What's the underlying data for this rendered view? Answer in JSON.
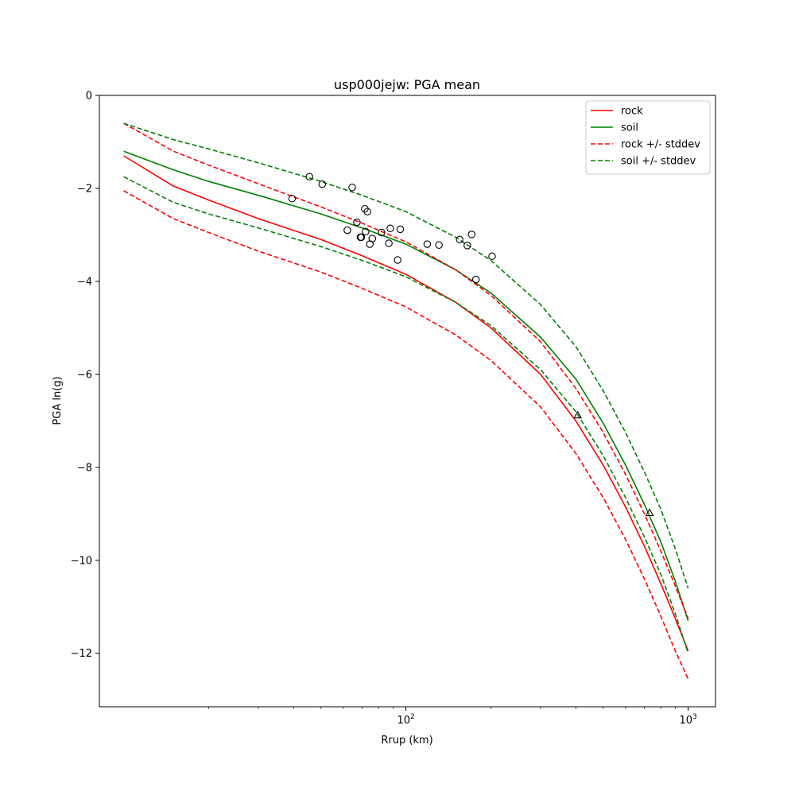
{
  "chart_data": {
    "type": "line",
    "title": "usp000jejw: PGA mean",
    "xlabel": "Rrup (km)",
    "ylabel": "PGA ln(g)",
    "xscale": "log",
    "xlim": [
      8.2,
      1250
    ],
    "ylim": [
      -13.15,
      0
    ],
    "x_ticks": [
      {
        "value": 100,
        "base": "10",
        "exp": "2"
      },
      {
        "value": 1000,
        "base": "10",
        "exp": "3"
      }
    ],
    "y_ticks": [
      {
        "value": 0,
        "label": "0"
      },
      {
        "value": -2,
        "label": "−2"
      },
      {
        "value": -4,
        "label": "−4"
      },
      {
        "value": -6,
        "label": "−6"
      },
      {
        "value": -8,
        "label": "−8"
      },
      {
        "value": -10,
        "label": "−10"
      },
      {
        "value": -12,
        "label": "−12"
      }
    ],
    "grid": false,
    "legend_position": "top-right",
    "x": [
      10,
      15,
      20,
      30,
      50,
      70,
      100,
      150,
      200,
      300,
      400,
      500,
      600,
      700,
      800,
      900,
      1000
    ],
    "series": [
      {
        "name": "rock",
        "color": "#ff0000",
        "dash": false,
        "values": [
          -1.3,
          -1.95,
          -2.25,
          -2.65,
          -3.1,
          -3.45,
          -3.85,
          -4.45,
          -5.0,
          -6.0,
          -7.0,
          -7.95,
          -8.85,
          -9.7,
          -10.5,
          -11.25,
          -11.95
        ]
      },
      {
        "name": "soil",
        "color": "#008000",
        "dash": false,
        "values": [
          -1.2,
          -1.6,
          -1.85,
          -2.15,
          -2.55,
          -2.85,
          -3.2,
          -3.75,
          -4.25,
          -5.2,
          -6.1,
          -7.05,
          -7.95,
          -8.8,
          -9.6,
          -10.45,
          -11.3
        ]
      },
      {
        "name": "rock +/- stddev",
        "color": "#ff0000",
        "dash": true,
        "values": [
          -0.6,
          -1.2,
          -1.5,
          -1.9,
          -2.4,
          -2.75,
          -3.15,
          -3.75,
          -4.3,
          -5.3,
          -6.3,
          -7.25,
          -8.15,
          -9.0,
          -9.8,
          -10.55,
          -11.25
        ]
      },
      {
        "name": "",
        "color": "#ff0000",
        "dash": true,
        "values": [
          -2.05,
          -2.65,
          -2.95,
          -3.35,
          -3.8,
          -4.15,
          -4.55,
          -5.15,
          -5.7,
          -6.7,
          -7.7,
          -8.65,
          -9.55,
          -10.4,
          -11.2,
          -11.95,
          -12.55
        ]
      },
      {
        "name": "soil +/- stddev",
        "color": "#008000",
        "dash": true,
        "values": [
          -0.6,
          -0.95,
          -1.15,
          -1.45,
          -1.85,
          -2.15,
          -2.5,
          -3.05,
          -3.55,
          -4.5,
          -5.4,
          -6.35,
          -7.25,
          -8.1,
          -8.9,
          -9.75,
          -10.6
        ]
      },
      {
        "name": "",
        "color": "#008000",
        "dash": true,
        "values": [
          -1.75,
          -2.3,
          -2.55,
          -2.85,
          -3.25,
          -3.55,
          -3.9,
          -4.45,
          -4.95,
          -5.9,
          -6.8,
          -7.75,
          -8.65,
          -9.5,
          -10.3,
          -11.15,
          -12.0
        ]
      }
    ],
    "observations_circle": [
      {
        "x": 39.5,
        "y": -2.22
      },
      {
        "x": 45.5,
        "y": -1.75
      },
      {
        "x": 50.5,
        "y": -1.91
      },
      {
        "x": 62,
        "y": -2.9
      },
      {
        "x": 64.5,
        "y": -1.98
      },
      {
        "x": 67,
        "y": -2.73
      },
      {
        "x": 69,
        "y": -3.05
      },
      {
        "x": 69.5,
        "y": -3.05
      },
      {
        "x": 71.5,
        "y": -2.44
      },
      {
        "x": 72,
        "y": -2.93
      },
      {
        "x": 73,
        "y": -2.5
      },
      {
        "x": 74.5,
        "y": -3.2
      },
      {
        "x": 76,
        "y": -3.08
      },
      {
        "x": 82,
        "y": -2.95
      },
      {
        "x": 87,
        "y": -3.18
      },
      {
        "x": 88,
        "y": -2.86
      },
      {
        "x": 93.5,
        "y": -3.54
      },
      {
        "x": 95.5,
        "y": -2.88
      },
      {
        "x": 119,
        "y": -3.2
      },
      {
        "x": 131,
        "y": -3.22
      },
      {
        "x": 155,
        "y": -3.1
      },
      {
        "x": 165,
        "y": -3.23
      },
      {
        "x": 171,
        "y": -2.99
      },
      {
        "x": 177,
        "y": -3.96
      },
      {
        "x": 202,
        "y": -3.46
      }
    ],
    "observations_triangle": [
      {
        "x": 406,
        "y": -6.88
      },
      {
        "x": 730,
        "y": -8.98
      }
    ]
  }
}
